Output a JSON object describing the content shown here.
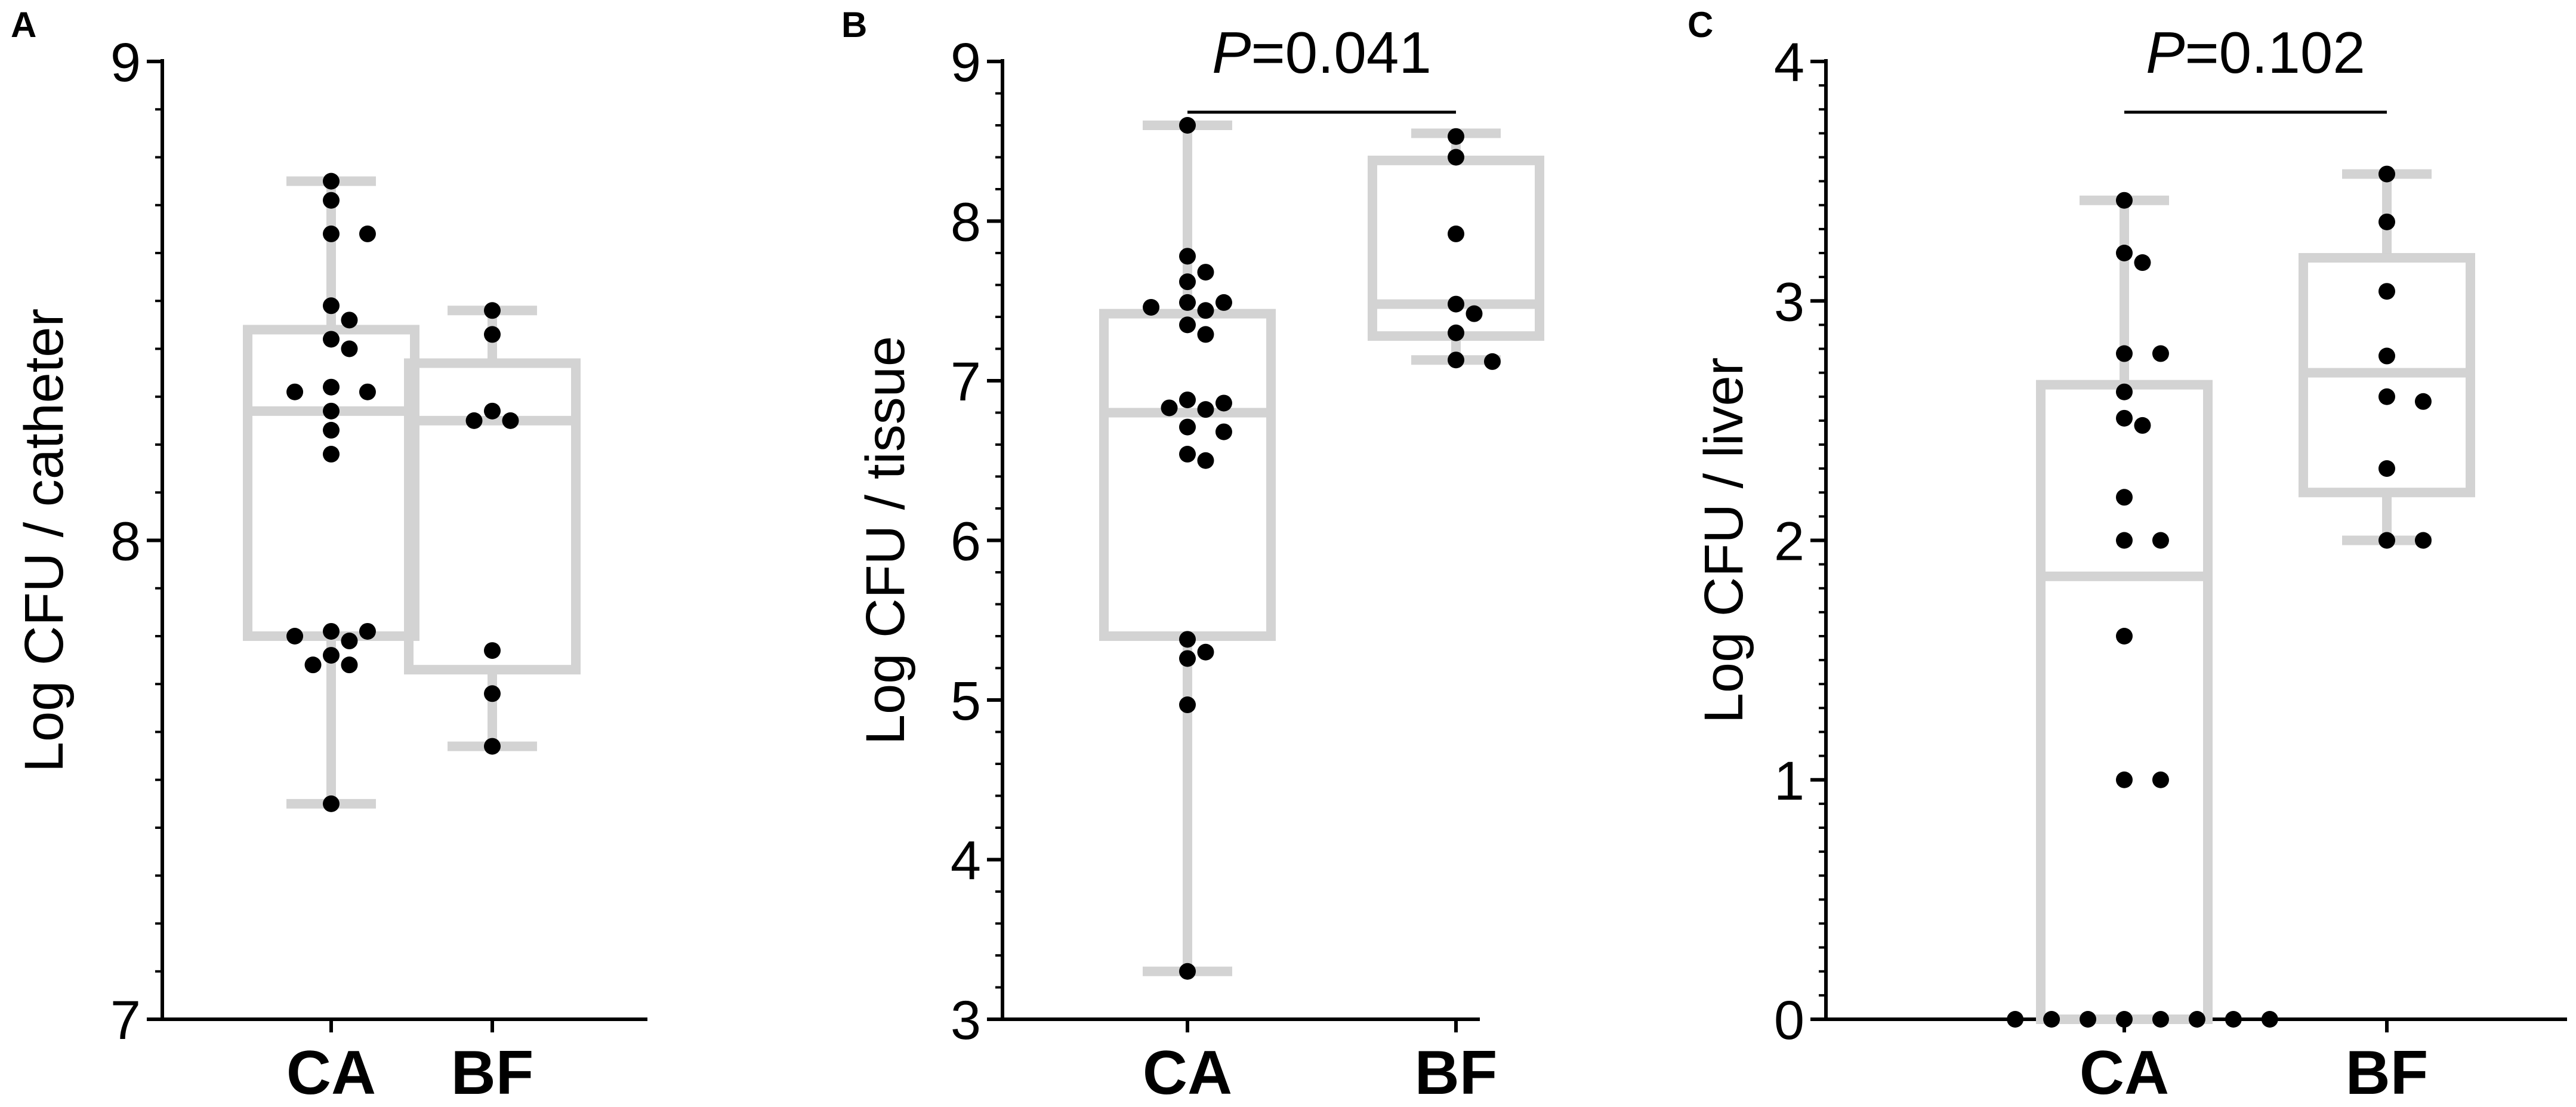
{
  "colors": {
    "box": "#d3d3d3",
    "point": "#000000",
    "axis": "#000000"
  },
  "chart_data": [
    {
      "type": "box",
      "panel": "A",
      "ylabel": "Log CFU / catheter",
      "categories": [
        "CA",
        "BF"
      ],
      "ylim": [
        7,
        9
      ],
      "yticks": [
        7,
        8,
        9
      ],
      "ytick_labels": [
        "7",
        "8",
        "9"
      ],
      "minor_per_major": 10,
      "pvalue": null,
      "boxes": [
        {
          "category": "CA",
          "min": 7.45,
          "q1": 7.8,
          "median": 8.27,
          "q3": 8.44,
          "max": 8.75
        },
        {
          "category": "BF",
          "min": 7.57,
          "q1": 7.73,
          "median": 8.25,
          "q3": 8.37,
          "max": 8.48
        }
      ],
      "points": [
        {
          "category": "CA",
          "values": [
            8.75,
            8.71,
            8.64,
            8.64,
            8.49,
            8.46,
            8.42,
            8.4,
            8.32,
            8.31,
            8.31,
            8.27,
            8.23,
            8.18,
            7.81,
            7.81,
            7.8,
            7.79,
            7.76,
            7.74,
            7.74,
            7.45
          ]
        },
        {
          "category": "BF",
          "values": [
            8.48,
            8.43,
            8.27,
            8.25,
            8.25,
            7.77,
            7.68,
            7.57
          ]
        }
      ]
    },
    {
      "type": "box",
      "panel": "B",
      "ylabel": "Log CFU / tissue",
      "categories": [
        "CA",
        "BF"
      ],
      "ylim": [
        3,
        9
      ],
      "yticks": [
        3,
        4,
        5,
        6,
        7,
        8,
        9
      ],
      "ytick_labels": [
        "3",
        "4",
        "5",
        "6",
        "7",
        "8",
        "9"
      ],
      "minor_per_major": 5,
      "pvalue": {
        "prefix": "P",
        "text": "=0.041"
      },
      "boxes": [
        {
          "category": "CA",
          "min": 3.3,
          "q1": 5.4,
          "median": 6.8,
          "q3": 7.42,
          "max": 8.6
        },
        {
          "category": "BF",
          "min": 7.13,
          "q1": 7.28,
          "median": 7.48,
          "q3": 8.38,
          "max": 8.55
        }
      ],
      "points": [
        {
          "category": "CA",
          "values": [
            8.6,
            7.78,
            7.68,
            7.62,
            7.49,
            7.49,
            7.46,
            7.44,
            7.35,
            7.29,
            6.88,
            6.86,
            6.83,
            6.82,
            6.71,
            6.68,
            6.54,
            6.5,
            5.38,
            5.3,
            5.26,
            4.97,
            3.3
          ]
        },
        {
          "category": "BF",
          "values": [
            8.53,
            8.4,
            7.92,
            7.48,
            7.42,
            7.3,
            7.13,
            7.12
          ]
        }
      ]
    },
    {
      "type": "box",
      "panel": "C",
      "ylabel": "Log CFU / liver",
      "categories": [
        "CA",
        "BF"
      ],
      "ylim": [
        0,
        4
      ],
      "yticks": [
        0,
        1,
        2,
        3,
        4
      ],
      "ytick_labels": [
        "0",
        "1",
        "2",
        "3",
        "4"
      ],
      "minor_per_major": 10,
      "pvalue": {
        "prefix": "P",
        "text": "=0.102"
      },
      "boxes": [
        {
          "category": "CA",
          "min": 0,
          "q1": 0,
          "median": 1.85,
          "q3": 2.65,
          "max": 3.42
        },
        {
          "category": "BF",
          "min": 2.0,
          "q1": 2.2,
          "median": 2.7,
          "q3": 3.18,
          "max": 3.53
        }
      ],
      "points": [
        {
          "category": "CA",
          "values": [
            3.42,
            3.2,
            3.16,
            2.78,
            2.78,
            2.62,
            2.51,
            2.48,
            2.18,
            2.0,
            2.0,
            1.6,
            1.0,
            1.0,
            0,
            0,
            0,
            0,
            0,
            0,
            0,
            0
          ]
        },
        {
          "category": "BF",
          "values": [
            3.53,
            3.33,
            3.04,
            2.77,
            2.6,
            2.58,
            2.3,
            2.0,
            2.0
          ]
        }
      ]
    }
  ]
}
